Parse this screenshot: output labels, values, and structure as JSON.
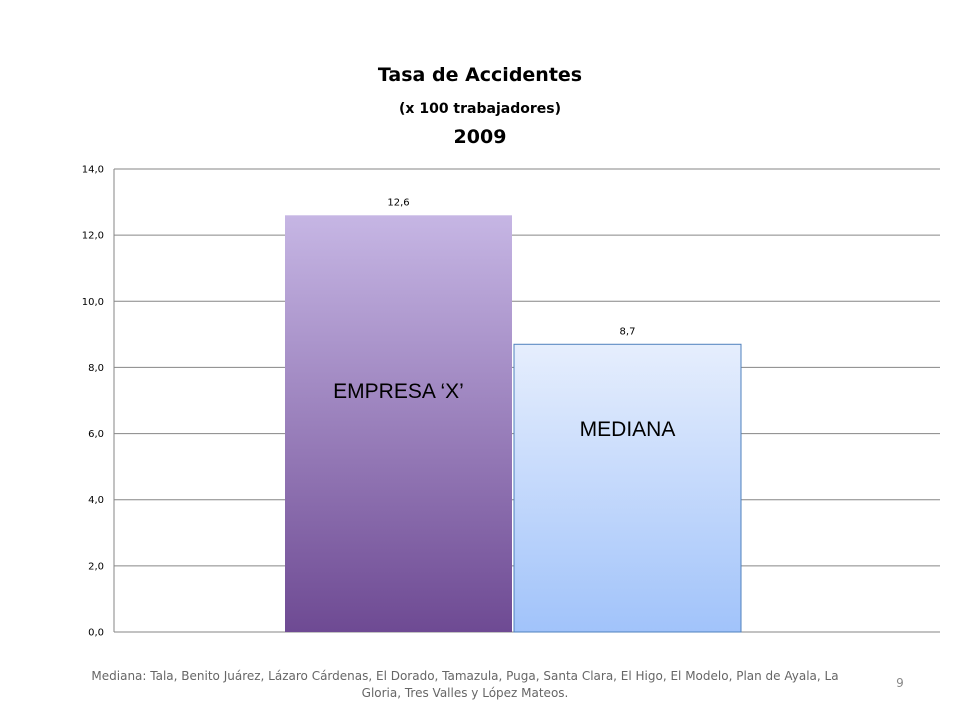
{
  "chart_data": {
    "type": "bar",
    "title": "Tasa de Accidentes",
    "subtitle": "(x 100 trabajadores)",
    "year": "2009",
    "categories": [
      "EMPRESA ‘X’",
      "MEDIANA"
    ],
    "values": [
      12.6,
      8.7
    ],
    "data_labels": [
      "12,6",
      "8,7"
    ],
    "ylim": [
      0,
      14
    ],
    "yticks": [
      0,
      2,
      4,
      6,
      8,
      10,
      12,
      14
    ],
    "ytick_labels": [
      "0,0",
      "2,0",
      "4,0",
      "6,0",
      "8,0",
      "10,0",
      "12,0",
      "14,0"
    ],
    "grid": true,
    "xlabel": "",
    "ylabel": "",
    "colors": {
      "empresa_top": "#c6b6e4",
      "empresa_bottom": "#6e4a93",
      "mediana_top": "#e6eefd",
      "mediana_bottom": "#a1c3fa",
      "mediana_border": "#4f81bd",
      "grid": "#868686"
    }
  },
  "footnote": "Mediana: Tala, Benito Juárez, Lázaro Cárdenas, El Dorado, Tamazula, Puga, Santa Clara, El  Higo, El Modelo, Plan de Ayala, La Gloria, Tres Valles y López Mateos.",
  "page_number": "9"
}
